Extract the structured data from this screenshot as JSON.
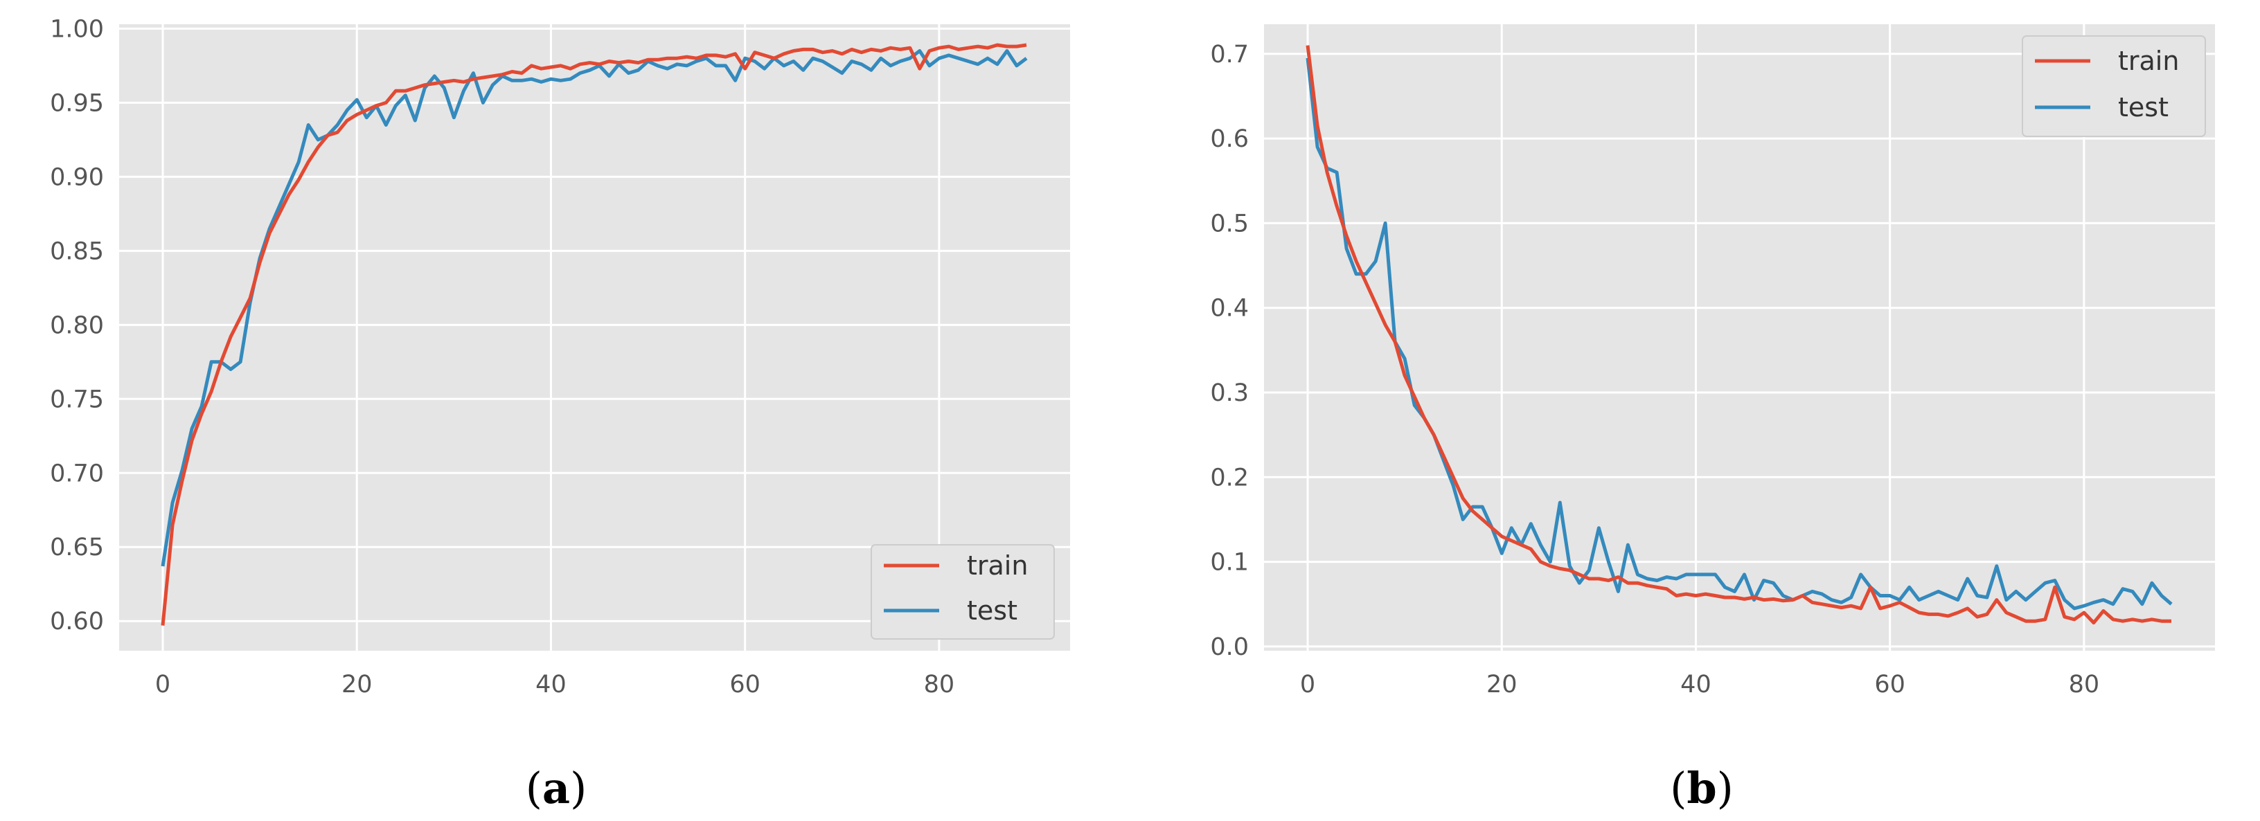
{
  "colors": {
    "train": "#E24A33",
    "test": "#348ABD",
    "plot_background": "#E5E5E5",
    "grid": "#FFFFFF"
  },
  "chart_data": [
    {
      "type": "line",
      "panel": "a",
      "caption_open": "(",
      "caption_letter": "a",
      "caption_close": ")",
      "xlim": [
        -4.5,
        93.5
      ],
      "ylim": [
        0.58,
        1.003
      ],
      "xticks": [
        0,
        20,
        40,
        60,
        80
      ],
      "xtick_labels": [
        "0",
        "20",
        "40",
        "60",
        "80"
      ],
      "yticks": [
        0.6,
        0.65,
        0.7,
        0.75,
        0.8,
        0.85,
        0.9,
        0.95,
        1.0
      ],
      "ytick_labels": [
        "0.60",
        "0.65",
        "0.70",
        "0.75",
        "0.80",
        "0.85",
        "0.90",
        "0.95",
        "1.00"
      ],
      "grid": true,
      "legend_position": "lower-right",
      "x": [
        0,
        1,
        2,
        3,
        4,
        5,
        6,
        7,
        8,
        9,
        10,
        11,
        12,
        13,
        14,
        15,
        16,
        17,
        18,
        19,
        20,
        21,
        22,
        23,
        24,
        25,
        26,
        27,
        28,
        29,
        30,
        31,
        32,
        33,
        34,
        35,
        36,
        37,
        38,
        39,
        40,
        41,
        42,
        43,
        44,
        45,
        46,
        47,
        48,
        49,
        50,
        51,
        52,
        53,
        54,
        55,
        56,
        57,
        58,
        59,
        60,
        61,
        62,
        63,
        64,
        65,
        66,
        67,
        68,
        69,
        70,
        71,
        72,
        73,
        74,
        75,
        76,
        77,
        78,
        79,
        80,
        81,
        82,
        83,
        84,
        85,
        86,
        87,
        88,
        89
      ],
      "series": [
        {
          "name": "train",
          "values": [
            0.597,
            0.665,
            0.695,
            0.722,
            0.74,
            0.755,
            0.775,
            0.792,
            0.805,
            0.818,
            0.842,
            0.862,
            0.875,
            0.888,
            0.898,
            0.91,
            0.92,
            0.928,
            0.93,
            0.938,
            0.942,
            0.945,
            0.948,
            0.95,
            0.958,
            0.958,
            0.96,
            0.962,
            0.963,
            0.964,
            0.965,
            0.964,
            0.966,
            0.967,
            0.968,
            0.969,
            0.971,
            0.97,
            0.975,
            0.973,
            0.974,
            0.975,
            0.973,
            0.976,
            0.977,
            0.976,
            0.978,
            0.977,
            0.978,
            0.977,
            0.979,
            0.979,
            0.98,
            0.98,
            0.981,
            0.98,
            0.982,
            0.982,
            0.981,
            0.983,
            0.973,
            0.984,
            0.982,
            0.98,
            0.983,
            0.985,
            0.986,
            0.986,
            0.984,
            0.985,
            0.983,
            0.986,
            0.984,
            0.986,
            0.985,
            0.987,
            0.986,
            0.987,
            0.973,
            0.985,
            0.987,
            0.988,
            0.986,
            0.987,
            0.988,
            0.987,
            0.989,
            0.988,
            0.988,
            0.989
          ]
        },
        {
          "name": "test",
          "values": [
            0.637,
            0.68,
            0.702,
            0.73,
            0.745,
            0.775,
            0.775,
            0.77,
            0.775,
            0.815,
            0.845,
            0.865,
            0.88,
            0.895,
            0.91,
            0.935,
            0.925,
            0.928,
            0.935,
            0.945,
            0.952,
            0.94,
            0.948,
            0.935,
            0.948,
            0.955,
            0.938,
            0.96,
            0.968,
            0.96,
            0.94,
            0.958,
            0.97,
            0.95,
            0.962,
            0.968,
            0.965,
            0.965,
            0.966,
            0.964,
            0.966,
            0.965,
            0.966,
            0.97,
            0.972,
            0.975,
            0.968,
            0.976,
            0.97,
            0.972,
            0.978,
            0.975,
            0.973,
            0.976,
            0.975,
            0.978,
            0.98,
            0.975,
            0.975,
            0.965,
            0.98,
            0.978,
            0.973,
            0.98,
            0.975,
            0.978,
            0.972,
            0.98,
            0.978,
            0.974,
            0.97,
            0.978,
            0.976,
            0.972,
            0.98,
            0.975,
            0.978,
            0.98,
            0.985,
            0.975,
            0.98,
            0.982,
            0.98,
            0.978,
            0.976,
            0.98,
            0.976,
            0.985,
            0.975,
            0.98
          ]
        }
      ]
    },
    {
      "type": "line",
      "panel": "b",
      "caption_open": "(",
      "caption_letter": "b",
      "caption_close": ")",
      "xlim": [
        -4.5,
        93.5
      ],
      "ylim": [
        -0.005,
        0.735
      ],
      "xticks": [
        0,
        20,
        40,
        60,
        80
      ],
      "xtick_labels": [
        "0",
        "20",
        "40",
        "60",
        "80"
      ],
      "yticks": [
        0.0,
        0.1,
        0.2,
        0.3,
        0.4,
        0.5,
        0.6,
        0.7
      ],
      "ytick_labels": [
        "0.0",
        "0.1",
        "0.2",
        "0.3",
        "0.4",
        "0.5",
        "0.6",
        "0.7"
      ],
      "grid": true,
      "legend_position": "upper-right",
      "x": [
        0,
        1,
        2,
        3,
        4,
        5,
        6,
        7,
        8,
        9,
        10,
        11,
        12,
        13,
        14,
        15,
        16,
        17,
        18,
        19,
        20,
        21,
        22,
        23,
        24,
        25,
        26,
        27,
        28,
        29,
        30,
        31,
        32,
        33,
        34,
        35,
        36,
        37,
        38,
        39,
        40,
        41,
        42,
        43,
        44,
        45,
        46,
        47,
        48,
        49,
        50,
        51,
        52,
        53,
        54,
        55,
        56,
        57,
        58,
        59,
        60,
        61,
        62,
        63,
        64,
        65,
        66,
        67,
        68,
        69,
        70,
        71,
        72,
        73,
        74,
        75,
        76,
        77,
        78,
        79,
        80,
        81,
        82,
        83,
        84,
        85,
        86,
        87,
        88,
        89
      ],
      "series": [
        {
          "name": "train",
          "values": [
            0.71,
            0.615,
            0.56,
            0.52,
            0.485,
            0.455,
            0.43,
            0.405,
            0.38,
            0.36,
            0.32,
            0.295,
            0.27,
            0.25,
            0.225,
            0.2,
            0.175,
            0.16,
            0.15,
            0.14,
            0.13,
            0.125,
            0.12,
            0.115,
            0.1,
            0.095,
            0.092,
            0.09,
            0.085,
            0.08,
            0.08,
            0.078,
            0.082,
            0.075,
            0.075,
            0.072,
            0.07,
            0.068,
            0.06,
            0.062,
            0.06,
            0.062,
            0.06,
            0.058,
            0.058,
            0.056,
            0.058,
            0.055,
            0.056,
            0.054,
            0.055,
            0.06,
            0.052,
            0.05,
            0.048,
            0.046,
            0.048,
            0.045,
            0.07,
            0.045,
            0.048,
            0.052,
            0.046,
            0.04,
            0.038,
            0.038,
            0.036,
            0.04,
            0.045,
            0.035,
            0.038,
            0.055,
            0.04,
            0.035,
            0.03,
            0.03,
            0.032,
            0.07,
            0.035,
            0.032,
            0.04,
            0.028,
            0.042,
            0.032,
            0.03,
            0.032,
            0.03,
            0.032,
            0.03,
            0.03
          ]
        },
        {
          "name": "test",
          "values": [
            0.695,
            0.59,
            0.565,
            0.56,
            0.47,
            0.44,
            0.44,
            0.455,
            0.5,
            0.36,
            0.34,
            0.285,
            0.27,
            0.25,
            0.22,
            0.19,
            0.15,
            0.165,
            0.165,
            0.14,
            0.11,
            0.14,
            0.12,
            0.145,
            0.12,
            0.1,
            0.17,
            0.095,
            0.075,
            0.09,
            0.14,
            0.1,
            0.065,
            0.12,
            0.085,
            0.08,
            0.078,
            0.082,
            0.08,
            0.085,
            0.085,
            0.085,
            0.085,
            0.07,
            0.065,
            0.085,
            0.055,
            0.078,
            0.075,
            0.06,
            0.055,
            0.06,
            0.065,
            0.062,
            0.055,
            0.052,
            0.058,
            0.085,
            0.07,
            0.06,
            0.06,
            0.055,
            0.07,
            0.055,
            0.06,
            0.065,
            0.06,
            0.055,
            0.08,
            0.06,
            0.058,
            0.095,
            0.055,
            0.065,
            0.055,
            0.065,
            0.075,
            0.078,
            0.055,
            0.045,
            0.048,
            0.052,
            0.055,
            0.05,
            0.068,
            0.065,
            0.05,
            0.075,
            0.06,
            0.05
          ]
        }
      ]
    }
  ]
}
